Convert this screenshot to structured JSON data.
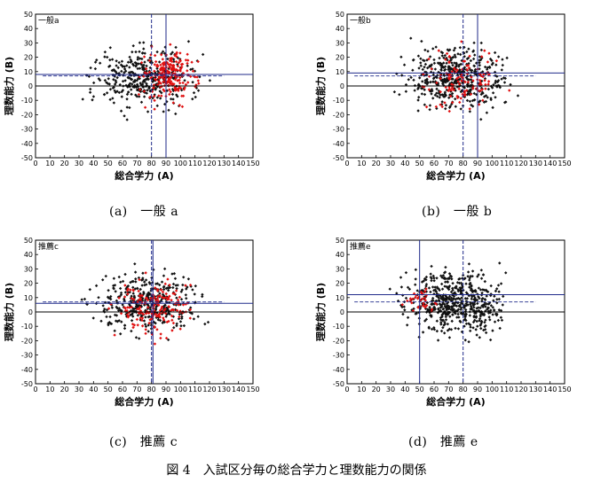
{
  "figure_caption": "図 4　入試区分毎の総合学力と理数能力の関係",
  "colors": {
    "admitted": "#e01010",
    "other": "#111111",
    "vline": "#1f2a8a",
    "hline": "#1f2a8a",
    "axis": "#000000"
  },
  "chart_data": [
    {
      "type": "scatter",
      "panel_label": "一般a",
      "caption": "(a)　一般 a",
      "xlabel": "総合学力 (A)",
      "ylabel": "理数能力 (B)",
      "xlim": [
        0,
        150
      ],
      "ylim": [
        -50,
        50
      ],
      "xticks": [
        0,
        10,
        20,
        30,
        40,
        50,
        60,
        70,
        80,
        90,
        100,
        110,
        120,
        130,
        140,
        150
      ],
      "yticks": [
        -50,
        -40,
        -30,
        -20,
        -10,
        0,
        10,
        20,
        30,
        40,
        50
      ],
      "grid": false,
      "series": [
        {
          "color": "red",
          "x_range": [
            60,
            125
          ],
          "y_range": [
            -25,
            40
          ],
          "count": 210
        },
        {
          "color": "black",
          "x_range": [
            20,
            130
          ],
          "y_range": [
            -30,
            42
          ],
          "count": 360
        }
      ],
      "reference_lines": {
        "vertical_dashed": 80,
        "vertical_solid": 90,
        "horizontal_solid": [
          0,
          8
        ],
        "horizontal_dashed": 7
      }
    },
    {
      "type": "scatter",
      "panel_label": "一般b",
      "caption": "(b)　一般 b",
      "xlabel": "総合学力 (A)",
      "ylabel": "理数能力 (B)",
      "xlim": [
        0,
        150
      ],
      "ylim": [
        -50,
        50
      ],
      "xticks": [
        0,
        10,
        20,
        30,
        40,
        50,
        60,
        70,
        80,
        90,
        100,
        110,
        120,
        130,
        140,
        150
      ],
      "yticks": [
        -50,
        -40,
        -30,
        -20,
        -10,
        0,
        10,
        20,
        30,
        40,
        50
      ],
      "grid": false,
      "series": [
        {
          "color": "red",
          "x_range": [
            40,
            120
          ],
          "y_range": [
            -30,
            38
          ],
          "count": 120
        },
        {
          "color": "black",
          "x_range": [
            20,
            130
          ],
          "y_range": [
            -30,
            42
          ],
          "count": 460
        }
      ],
      "reference_lines": {
        "vertical_dashed": 80,
        "vertical_solid": 90,
        "horizontal_solid": [
          0,
          9
        ],
        "horizontal_dashed": 7
      }
    },
    {
      "type": "scatter",
      "panel_label": "推薦c",
      "caption": "(c)　推薦 c",
      "xlabel": "総合学力 (A)",
      "ylabel": "理数能力 (B)",
      "xlim": [
        0,
        150
      ],
      "ylim": [
        -50,
        50
      ],
      "xticks": [
        0,
        10,
        20,
        30,
        40,
        50,
        60,
        70,
        80,
        90,
        100,
        110,
        120,
        130,
        140,
        150
      ],
      "yticks": [
        -50,
        -40,
        -30,
        -20,
        -10,
        0,
        10,
        20,
        30,
        40,
        50
      ],
      "grid": false,
      "series": [
        {
          "color": "red",
          "x_range": [
            40,
            120
          ],
          "y_range": [
            -28,
            35
          ],
          "count": 180
        },
        {
          "color": "black",
          "x_range": [
            20,
            130
          ],
          "y_range": [
            -30,
            42
          ],
          "count": 380
        }
      ],
      "reference_lines": {
        "vertical_dashed": 80,
        "vertical_solid": 81,
        "horizontal_solid": [
          0,
          6
        ],
        "horizontal_dashed": 7
      }
    },
    {
      "type": "scatter",
      "panel_label": "推薦e",
      "caption": "(d)　推薦 e",
      "xlabel": "総合学力 (A)",
      "ylabel": "理数能力 (B)",
      "xlim": [
        0,
        150
      ],
      "ylim": [
        -50,
        50
      ],
      "xticks": [
        0,
        10,
        20,
        30,
        40,
        50,
        60,
        70,
        80,
        90,
        100,
        110,
        120,
        130,
        140,
        150
      ],
      "yticks": [
        -50,
        -40,
        -30,
        -20,
        -10,
        0,
        10,
        20,
        30,
        40,
        50
      ],
      "grid": false,
      "series": [
        {
          "color": "red",
          "x_range": [
            30,
            70
          ],
          "y_range": [
            -10,
            25
          ],
          "count": 35
        },
        {
          "color": "black",
          "x_range": [
            20,
            130
          ],
          "y_range": [
            -30,
            42
          ],
          "count": 560
        }
      ],
      "reference_lines": {
        "vertical_solid": 50,
        "vertical_dashed": 80,
        "horizontal_solid": [
          0,
          12
        ],
        "horizontal_dashed": 7
      }
    }
  ]
}
